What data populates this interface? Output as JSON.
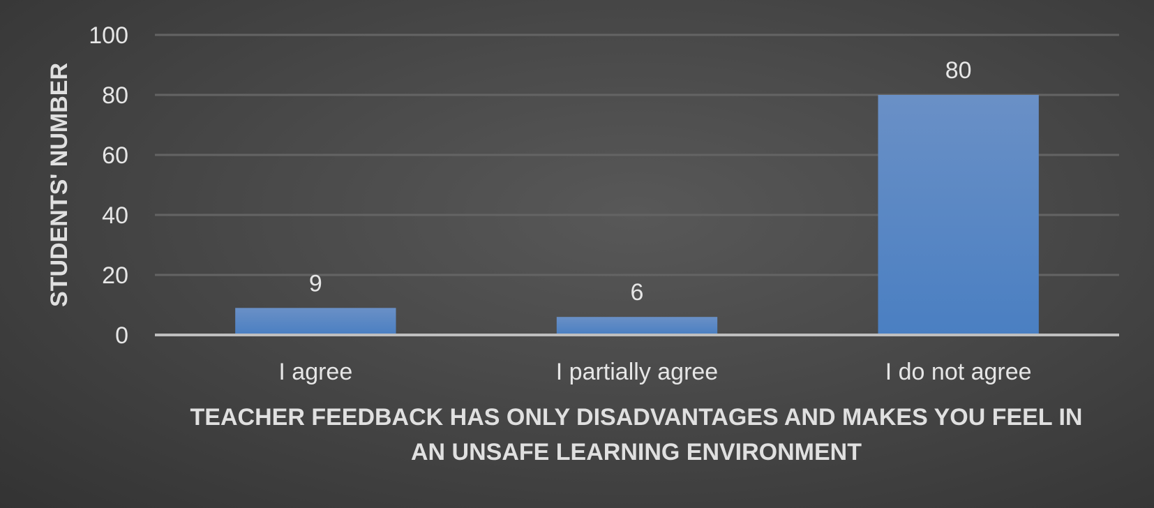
{
  "chart_data": {
    "type": "bar",
    "categories": [
      "I agree",
      "I partially agree",
      "I do not agree"
    ],
    "values": [
      9,
      6,
      80
    ],
    "data_labels": [
      "9",
      "6",
      "80"
    ],
    "title": "",
    "xlabel_lines": [
      "TEACHER FEEDBACK HAS ONLY DISADVANTAGES AND MAKES YOU FEEL IN",
      "AN UNSAFE LEARNING ENVIRONMENT"
    ],
    "ylabel": "STUDENTS' NUMBER",
    "ylim": [
      0,
      100
    ],
    "yticks": [
      0,
      20,
      40,
      60,
      80,
      100
    ],
    "ytick_labels": [
      "0",
      "20",
      "40",
      "60",
      "80",
      "100"
    ],
    "grid": true,
    "legend": "none",
    "colors": {
      "bar_top": "#6a90c6",
      "bar_bottom": "#4a7fc2",
      "grid": "#646464",
      "axis": "#bfbfbf",
      "text": "#e6e6e6"
    }
  }
}
